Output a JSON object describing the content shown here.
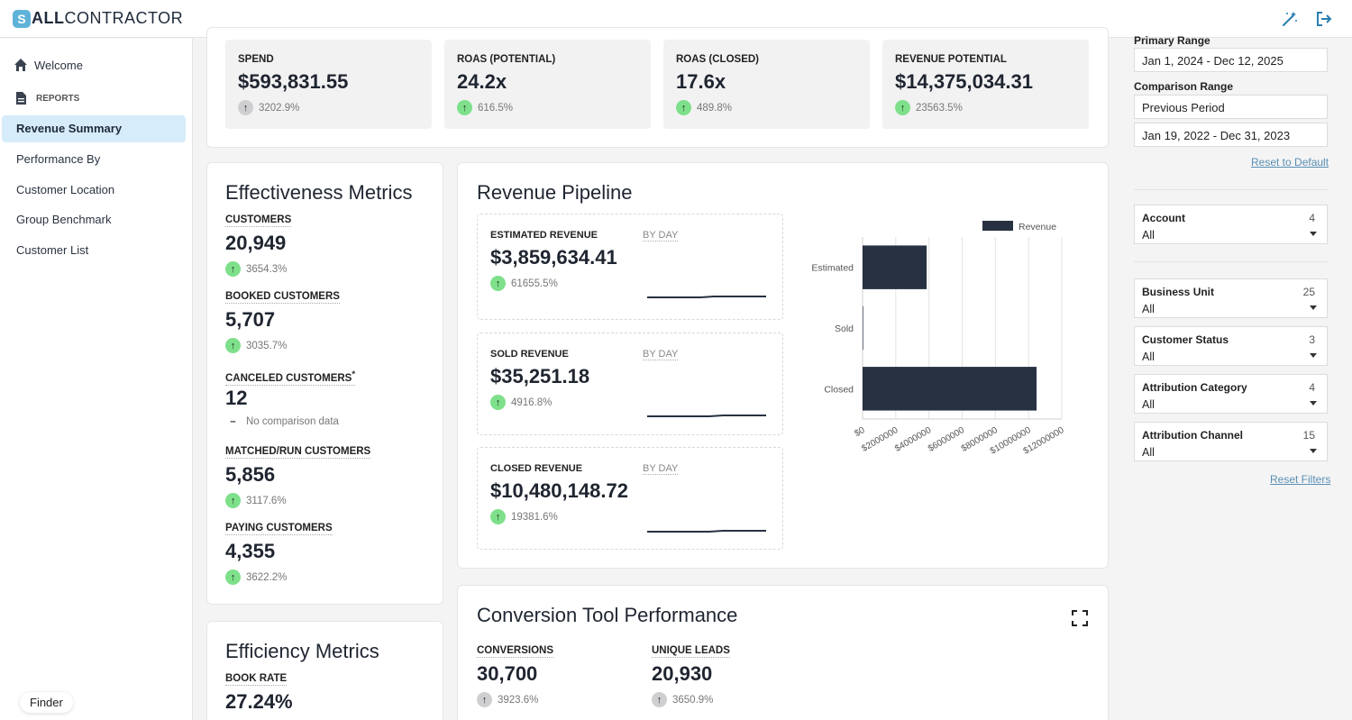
{
  "header": {
    "logo_mark": "S",
    "logo_bold": "ALL",
    "logo_rest": "CONTRACTOR"
  },
  "sidebar": {
    "welcome": "Welcome",
    "section": "REPORTS",
    "items": [
      "Revenue Summary",
      "Performance By",
      "Customer Location",
      "Group Benchmark",
      "Customer List"
    ],
    "active": "Revenue Summary"
  },
  "finder": "Finder",
  "kpis": [
    {
      "label": "SPEND",
      "value": "$593,831.55",
      "change": "3202.9%",
      "trend": "up-neutral"
    },
    {
      "label": "ROAS (POTENTIAL)",
      "value": "24.2x",
      "change": "616.5%",
      "trend": "up"
    },
    {
      "label": "ROAS (CLOSED)",
      "value": "17.6x",
      "change": "489.8%",
      "trend": "up"
    },
    {
      "label": "REVENUE POTENTIAL",
      "value": "$14,375,034.31",
      "change": "23563.5%",
      "trend": "up"
    }
  ],
  "effectiveness": {
    "title": "Effectiveness Metrics",
    "metrics": [
      {
        "label": "CUSTOMERS",
        "value": "20,949",
        "change": "3654.3%"
      },
      {
        "label": "BOOKED CUSTOMERS",
        "value": "5,707",
        "change": "3035.7%"
      },
      {
        "label": "CANCELED CUSTOMERS",
        "asterisk": "*",
        "value": "12",
        "change": "No comparison data"
      },
      {
        "label": "MATCHED/RUN CUSTOMERS",
        "value": "5,856",
        "change": "3117.6%"
      },
      {
        "label": "PAYING CUSTOMERS",
        "value": "4,355",
        "change": "3622.2%"
      }
    ]
  },
  "efficiency": {
    "title": "Efficiency Metrics",
    "metric": {
      "label": "BOOK RATE",
      "value": "27.24%"
    }
  },
  "pipeline": {
    "title": "Revenue Pipeline",
    "cards": [
      {
        "label": "ESTIMATED REVENUE",
        "value": "$3,859,634.41",
        "change": "61655.5%",
        "by": "BY DAY"
      },
      {
        "label": "SOLD REVENUE",
        "value": "$35,251.18",
        "change": "4916.8%",
        "by": "BY DAY"
      },
      {
        "label": "CLOSED REVENUE",
        "value": "$10,480,148.72",
        "change": "19381.6%",
        "by": "BY DAY"
      }
    ]
  },
  "chart_data": {
    "type": "bar",
    "orientation": "horizontal",
    "title": "",
    "legend": [
      "Revenue"
    ],
    "legend_position": "top-right",
    "categories": [
      "Estimated",
      "Sold",
      "Closed"
    ],
    "values": [
      3859634.41,
      35251.18,
      10480148.72
    ],
    "xlim": [
      0,
      12000000
    ],
    "xticks": [
      "$0",
      "$2000000",
      "$4000000",
      "$6000000",
      "$8000000",
      "$10000000",
      "$12000000"
    ],
    "grid": true,
    "color": "#273142"
  },
  "conversion": {
    "title": "Conversion Tool Performance",
    "metrics": [
      {
        "label": "CONVERSIONS",
        "value": "30,700",
        "change": "3923.6%"
      },
      {
        "label": "UNIQUE LEADS",
        "value": "20,930",
        "change": "3650.9%"
      }
    ]
  },
  "filters": {
    "primary_label": "Primary Range",
    "primary_value": "Jan 1, 2024 - Dec 12, 2025",
    "comparison_label": "Comparison Range",
    "comparison_type": "Previous Period",
    "comparison_value": "Jan 19, 2022 - Dec 31, 2023",
    "reset_default": "Reset to Default",
    "items": [
      {
        "label": "Account",
        "count": "4",
        "value": "All"
      },
      {
        "label": "Business Unit",
        "count": "25",
        "value": "All"
      },
      {
        "label": "Customer Status",
        "count": "3",
        "value": "All"
      },
      {
        "label": "Attribution Category",
        "count": "4",
        "value": "All"
      },
      {
        "label": "Attribution Channel",
        "count": "15",
        "value": "All"
      }
    ],
    "reset_filters": "Reset Filters"
  },
  "colors": {
    "accent": "#5fb3d9",
    "active_nav": "#d7ecfa",
    "up": "#7ee08a",
    "bar": "#273142",
    "link": "#5a8fb3"
  }
}
